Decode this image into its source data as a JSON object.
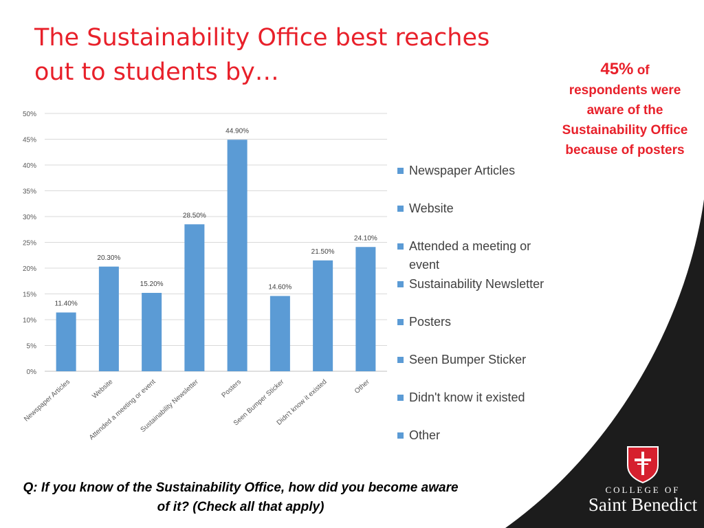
{
  "slide": {
    "title": "The Sustainability Office best reaches out to students by…",
    "callout": {
      "percent": "45%",
      "word_of": "of",
      "text": "respondents were aware of the Sustainability Office because of posters"
    },
    "question": "Q: If you know of the Sustainability Office, how did you become aware of it?  (Check all that apply)",
    "logo": {
      "line1": "COLLEGE OF",
      "line2": "Saint Benedict"
    },
    "colors": {
      "title": "#e8202a",
      "bar": "#5b9bd5",
      "logo_shield": "#d6202e",
      "corner": "#1c1c1c"
    }
  },
  "chart_data": {
    "type": "bar",
    "categories": [
      "Newspaper Articles",
      "Website",
      "Attended a meeting or event",
      "Sustainability Newsletter",
      "Posters",
      "Seen Bumper Sticker",
      "Didn't know it existed",
      "Other"
    ],
    "values": [
      11.4,
      20.3,
      15.2,
      28.5,
      44.9,
      14.6,
      21.5,
      24.1
    ],
    "data_labels": [
      "11.40%",
      "20.30%",
      "15.20%",
      "28.50%",
      "44.90%",
      "14.60%",
      "21.50%",
      "24.10%"
    ],
    "ylim": [
      0,
      50
    ],
    "yticks": [
      "0%",
      "5%",
      "10%",
      "15%",
      "20%",
      "25%",
      "30%",
      "35%",
      "40%",
      "45%",
      "50%"
    ],
    "grid": true,
    "legend_position": "right",
    "legend_entries": [
      "Newspaper Articles",
      "Website",
      "Attended a meeting or event",
      "Sustainability Newsletter",
      "Posters",
      "Seen Bumper Sticker",
      "Didn't know it existed",
      "Other"
    ],
    "title": "",
    "xlabel": "",
    "ylabel": ""
  }
}
